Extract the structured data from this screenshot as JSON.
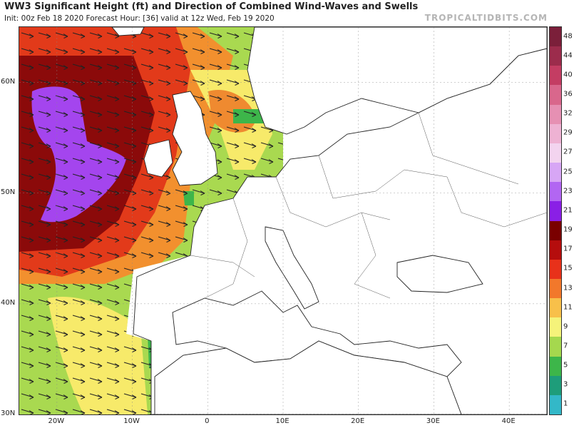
{
  "header": {
    "title": "WW3 Significant Height (ft) and Direction of Combined Wind-Waves and Swells",
    "subtitle": "Init: 00z Feb 18 2020   Forecast Hour: [36]   valid at 12z Wed, Feb 19 2020",
    "brand": "TROPICALTIDBITS.COM"
  },
  "axes": {
    "lat_labels": [
      "60N",
      "50N",
      "40N",
      "30N"
    ],
    "lat_values": [
      60,
      50,
      40,
      30
    ],
    "lon_labels": [
      "20W",
      "10W",
      "0",
      "10E",
      "20E",
      "30E",
      "40E"
    ],
    "lon_values": [
      -20,
      -10,
      0,
      10,
      20,
      30,
      40
    ],
    "lon_range": [
      -25,
      45
    ],
    "lat_range": [
      30,
      65
    ]
  },
  "colorbar": {
    "unit": "ft",
    "labels": [
      "48",
      "44",
      "40",
      "36",
      "32",
      "29",
      "27",
      "25",
      "23",
      "21",
      "19",
      "17",
      "15",
      "13",
      "11",
      "9",
      "7",
      "5",
      "3",
      "1"
    ],
    "colors": [
      "#7b1f3a",
      "#9c2c4c",
      "#c43d63",
      "#d9678c",
      "#e690b3",
      "#eeb2d3",
      "#f3d4ef",
      "#d7a6f5",
      "#b266f2",
      "#8a1fe6",
      "#7a0000",
      "#b50d0d",
      "#e8311a",
      "#f2782b",
      "#f8c04a",
      "#f5f37a",
      "#a5d84e",
      "#3db64a",
      "#1e9d7a",
      "#33b8c8"
    ]
  },
  "wave_field": {
    "unit": "ft",
    "regions": [
      {
        "name": "north-atlantic-high-core",
        "value_ft": 23,
        "color": "#a445ee"
      },
      {
        "name": "north-atlantic-severe",
        "value_ft": 19,
        "color": "#8b0a0a"
      },
      {
        "name": "north-atlantic-high",
        "value_ft": 15,
        "color": "#e23a1a"
      },
      {
        "name": "north-atlantic-moderate",
        "value_ft": 13,
        "color": "#f2902e"
      },
      {
        "name": "subtropical-atlantic",
        "value_ft": 9,
        "color": "#a9d950"
      },
      {
        "name": "subtropical-swell",
        "value_ft": 11,
        "color": "#f7ea6a"
      },
      {
        "name": "north-sea",
        "value_ft": 11,
        "color": "#f7ea6a"
      },
      {
        "name": "north-sea-peak",
        "value_ft": 15,
        "color": "#ef8a30"
      },
      {
        "name": "coastal-shallow",
        "value_ft": 7,
        "color": "#3db64a"
      }
    ],
    "arrow_direction": "east-southeast"
  }
}
